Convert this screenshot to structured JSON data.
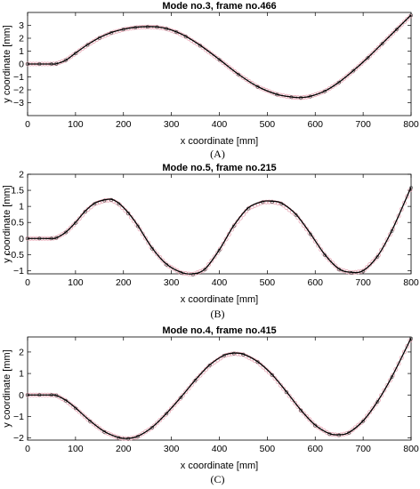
{
  "chart_data": [
    {
      "type": "line",
      "caption": "(A)",
      "title": "Mode no.3, frame no.466",
      "xlabel": "x coordinate [mm]",
      "ylabel": "y coordinate [mm]",
      "xlim": [
        0,
        800
      ],
      "ylim": [
        -4,
        4
      ],
      "xticks": [
        0,
        100,
        200,
        300,
        400,
        500,
        600,
        700,
        800
      ],
      "yticks": [
        -3,
        -2,
        -1,
        0,
        1,
        2,
        3
      ],
      "grid": false,
      "x": [
        0,
        25,
        50,
        60,
        80,
        100,
        125,
        150,
        175,
        200,
        225,
        250,
        270,
        290,
        310,
        330,
        360,
        400,
        440,
        480,
        520,
        550,
        570,
        590,
        620,
        650,
        680,
        710,
        740,
        770,
        800
      ],
      "y_fit": [
        0,
        0,
        0,
        0.02,
        0.3,
        0.85,
        1.5,
        2.05,
        2.45,
        2.7,
        2.85,
        2.9,
        2.88,
        2.75,
        2.5,
        2.15,
        1.45,
        0.35,
        -0.8,
        -1.75,
        -2.35,
        -2.55,
        -2.6,
        -2.5,
        -2.1,
        -1.4,
        -0.5,
        0.5,
        1.6,
        2.7,
        3.8
      ],
      "y_measured": [
        0,
        0,
        0,
        0.02,
        0.3,
        0.82,
        1.48,
        2.02,
        2.42,
        2.68,
        2.83,
        2.88,
        2.86,
        2.73,
        2.48,
        2.12,
        1.42,
        0.33,
        -0.82,
        -1.77,
        -2.37,
        -2.57,
        -2.62,
        -2.52,
        -2.12,
        -1.42,
        -0.52,
        0.48,
        1.58,
        2.68,
        3.78
      ]
    },
    {
      "type": "line",
      "caption": "(B)",
      "title": "Mode no.5, frame no.215",
      "xlabel": "x coordinate [mm]",
      "ylabel": "y coordinate [mm]",
      "xlim": [
        0,
        800
      ],
      "ylim": [
        -1.1,
        2
      ],
      "xticks": [
        0,
        100,
        200,
        300,
        400,
        500,
        600,
        700,
        800
      ],
      "yticks": [
        -1,
        -0.5,
        0,
        0.5,
        1,
        1.5,
        2
      ],
      "ytick_labels": [
        "-1",
        "-0.5",
        "0",
        "0.5",
        "1",
        "1.5",
        "2"
      ],
      "grid": false,
      "x": [
        0,
        25,
        50,
        60,
        80,
        100,
        120,
        140,
        160,
        175,
        190,
        210,
        230,
        260,
        290,
        320,
        345,
        370,
        400,
        430,
        460,
        490,
        510,
        530,
        560,
        590,
        620,
        650,
        675,
        700,
        730,
        760,
        800
      ],
      "y_fit": [
        0,
        0,
        0,
        0.02,
        0.2,
        0.5,
        0.85,
        1.1,
        1.2,
        1.22,
        1.1,
        0.8,
        0.4,
        -0.3,
        -0.8,
        -1.05,
        -1.1,
        -0.95,
        -0.35,
        0.4,
        0.95,
        1.15,
        1.16,
        1.1,
        0.75,
        0.15,
        -0.5,
        -0.95,
        -1.05,
        -1.0,
        -0.55,
        0.25,
        1.6
      ],
      "y_measured": [
        0,
        0,
        0,
        0.02,
        0.19,
        0.48,
        0.83,
        1.08,
        1.18,
        1.2,
        1.08,
        0.78,
        0.38,
        -0.32,
        -0.82,
        -1.07,
        -1.12,
        -0.97,
        -0.37,
        0.38,
        0.93,
        1.13,
        1.14,
        1.08,
        0.73,
        0.13,
        -0.52,
        -0.97,
        -1.07,
        -1.02,
        -0.57,
        0.23,
        1.58
      ]
    },
    {
      "type": "line",
      "caption": "(C)",
      "title": "Mode no.4, frame no.415",
      "xlabel": "x coordinate [mm]",
      "ylabel": "y coordinate [mm]",
      "xlim": [
        0,
        800
      ],
      "ylim": [
        -2.1,
        2.7
      ],
      "xticks": [
        0,
        100,
        200,
        300,
        400,
        500,
        600,
        700,
        800
      ],
      "yticks": [
        -2,
        -1,
        0,
        1,
        2
      ],
      "grid": false,
      "x": [
        0,
        25,
        50,
        60,
        80,
        100,
        130,
        160,
        190,
        210,
        230,
        260,
        290,
        320,
        350,
        380,
        410,
        430,
        450,
        480,
        510,
        540,
        570,
        600,
        630,
        650,
        670,
        700,
        730,
        760,
        800
      ],
      "y_fit": [
        0,
        0,
        0,
        -0.02,
        -0.25,
        -0.6,
        -1.2,
        -1.7,
        -1.98,
        -2.02,
        -1.92,
        -1.5,
        -0.85,
        -0.1,
        0.7,
        1.4,
        1.85,
        1.95,
        1.9,
        1.55,
        0.95,
        0.15,
        -0.7,
        -1.4,
        -1.8,
        -1.85,
        -1.75,
        -1.2,
        -0.3,
        0.85,
        2.65
      ],
      "y_measured": [
        0,
        0,
        0,
        -0.02,
        -0.27,
        -0.62,
        -1.22,
        -1.72,
        -2.0,
        -2.04,
        -1.94,
        -1.52,
        -0.87,
        -0.12,
        0.68,
        1.38,
        1.83,
        1.93,
        1.88,
        1.53,
        0.93,
        0.13,
        -0.72,
        -1.42,
        -1.82,
        -1.87,
        -1.77,
        -1.22,
        -0.32,
        0.83,
        2.63
      ]
    }
  ],
  "colors": {
    "fit_line": "#000000",
    "measured_marker": "#e6a6b4",
    "axis": "#000000"
  }
}
